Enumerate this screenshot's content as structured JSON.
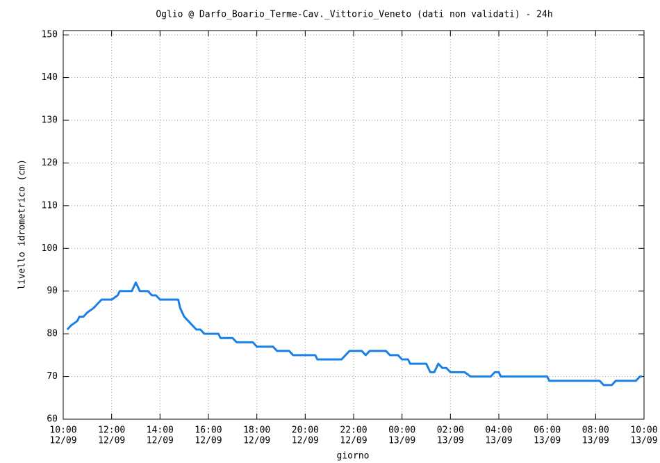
{
  "chart_data": {
    "type": "line",
    "title": "Oglio @ Darfo_Boario_Terme-Cav._Vittorio_Veneto (dati non validati) - 24h",
    "xlabel": "giorno",
    "ylabel": "livello idrometrico (cm)",
    "x": [
      "12/09 10:10",
      "12/09 10:20",
      "12/09 10:35",
      "12/09 10:40",
      "12/09 10:50",
      "12/09 11:00",
      "12/09 11:15",
      "12/09 11:25",
      "12/09 11:35",
      "12/09 12:00",
      "12/09 12:15",
      "12/09 12:20",
      "12/09 12:50",
      "12/09 13:00",
      "12/09 13:10",
      "12/09 13:30",
      "12/09 13:40",
      "12/09 13:50",
      "12/09 14:00",
      "12/09 14:45",
      "12/09 14:50",
      "12/09 15:00",
      "12/09 15:10",
      "12/09 15:30",
      "12/09 15:40",
      "12/09 15:50",
      "12/09 16:25",
      "12/09 16:30",
      "12/09 17:00",
      "12/09 17:10",
      "12/09 17:50",
      "12/09 18:00",
      "12/09 18:40",
      "12/09 18:50",
      "12/09 19:20",
      "12/09 19:30",
      "12/09 20:25",
      "12/09 20:30",
      "12/09 21:30",
      "12/09 21:50",
      "12/09 22:20",
      "12/09 22:30",
      "12/09 22:40",
      "12/09 23:20",
      "12/09 23:30",
      "12/09 23:50",
      "13/09 00:00",
      "13/09 00:15",
      "13/09 00:20",
      "13/09 01:00",
      "13/09 01:10",
      "13/09 01:20",
      "13/09 01:30",
      "13/09 01:40",
      "13/09 01:50",
      "13/09 02:00",
      "13/09 02:35",
      "13/09 02:50",
      "13/09 03:40",
      "13/09 03:50",
      "13/09 04:00",
      "13/09 04:05",
      "13/09 06:00",
      "13/09 06:05",
      "13/09 08:10",
      "13/09 08:20",
      "13/09 08:40",
      "13/09 08:50",
      "13/09 09:40",
      "13/09 09:50",
      "13/09 09:55"
    ],
    "series": [
      {
        "name": "livello",
        "color": "#1a80e8",
        "values": [
          81,
          82,
          83,
          84,
          84,
          85,
          86,
          87,
          88,
          88,
          89,
          90,
          90,
          92,
          90,
          90,
          89,
          89,
          88,
          88,
          86,
          84,
          83,
          81,
          81,
          80,
          80,
          79,
          79,
          78,
          78,
          77,
          77,
          76,
          76,
          75,
          75,
          74,
          74,
          76,
          76,
          75,
          76,
          76,
          75,
          75,
          74,
          74,
          73,
          73,
          71,
          71,
          73,
          72,
          72,
          71,
          71,
          70,
          70,
          71,
          71,
          70,
          70,
          69,
          69,
          68,
          68,
          69,
          69,
          70,
          70
        ]
      }
    ],
    "xlim": [
      "12/09 10:00",
      "13/09 10:00"
    ],
    "xticks": [
      {
        "value": "12/09 10:00",
        "label": [
          "10:00",
          "12/09"
        ]
      },
      {
        "value": "12/09 12:00",
        "label": [
          "12:00",
          "12/09"
        ]
      },
      {
        "value": "12/09 14:00",
        "label": [
          "14:00",
          "12/09"
        ]
      },
      {
        "value": "12/09 16:00",
        "label": [
          "16:00",
          "12/09"
        ]
      },
      {
        "value": "12/09 18:00",
        "label": [
          "18:00",
          "12/09"
        ]
      },
      {
        "value": "12/09 20:00",
        "label": [
          "20:00",
          "12/09"
        ]
      },
      {
        "value": "12/09 22:00",
        "label": [
          "22:00",
          "12/09"
        ]
      },
      {
        "value": "13/09 00:00",
        "label": [
          "00:00",
          "13/09"
        ]
      },
      {
        "value": "13/09 02:00",
        "label": [
          "02:00",
          "13/09"
        ]
      },
      {
        "value": "13/09 04:00",
        "label": [
          "04:00",
          "13/09"
        ]
      },
      {
        "value": "13/09 06:00",
        "label": [
          "06:00",
          "13/09"
        ]
      },
      {
        "value": "13/09 08:00",
        "label": [
          "08:00",
          "13/09"
        ]
      },
      {
        "value": "13/09 10:00",
        "label": [
          "10:00",
          "13/09"
        ]
      }
    ],
    "ylim": [
      60,
      151
    ],
    "yticks": [
      60,
      70,
      80,
      90,
      100,
      110,
      120,
      130,
      140,
      150
    ],
    "grid": true
  }
}
